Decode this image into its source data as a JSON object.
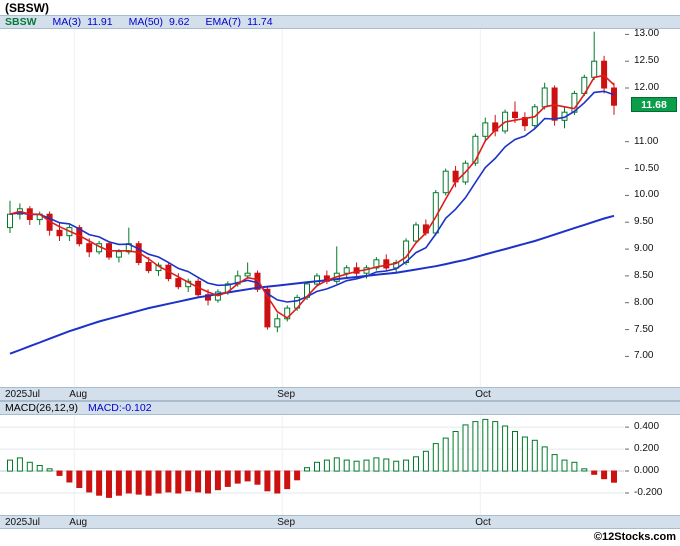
{
  "title": "(SBSW)",
  "legend": {
    "symbol": "SBSW",
    "items": [
      {
        "label": "MA(3)",
        "value": "11.91"
      },
      {
        "label": "MA(50)",
        "value": "9.62"
      },
      {
        "label": "EMA(7)",
        "value": "11.74"
      }
    ]
  },
  "price_badge": "11.68",
  "macd_legend": {
    "label": "MACD(26,12,9)",
    "value_label": "MACD:-0.102"
  },
  "watermark": "©12Stocks.com",
  "colors": {
    "up": "#007a29",
    "down": "#cc1111",
    "ma3": "#e01b1b",
    "ema7": "#1c32c8",
    "ma50": "#1c32c8",
    "badge_bg": "#0a9e4a",
    "strip_bg": "#d3dfeb",
    "strip_border": "#a8bccd",
    "legend_blue": "#0000cc",
    "symbol_green": "#067a3a"
  },
  "chart_data": {
    "type": "candlestick",
    "symbol": "SBSW",
    "title": "(SBSW)",
    "x_axis": {
      "labels": [
        "2025Jul",
        "Aug",
        "Sep",
        "Oct"
      ],
      "month_start_idx": [
        0,
        7,
        28,
        48
      ]
    },
    "price_axis_ticks": [
      {
        "label": "13.00",
        "value": 13.0
      },
      {
        "label": "12.50",
        "value": 12.5
      },
      {
        "label": "12.00",
        "value": 12.0
      },
      {
        "label": "11.00",
        "value": 11.0
      },
      {
        "label": "10.50",
        "value": 10.5
      },
      {
        "label": "10.00",
        "value": 10.0
      },
      {
        "label": "9.50",
        "value": 9.5
      },
      {
        "label": "9.00",
        "value": 9.0
      },
      {
        "label": "8.50",
        "value": 8.5
      },
      {
        "label": "8.00",
        "value": 8.0
      },
      {
        "label": "7.50",
        "value": 7.5
      },
      {
        "label": "7.00",
        "value": 7.0
      }
    ],
    "price_range": [
      6.43,
      13.1
    ],
    "last_price": 11.68,
    "indicators": {
      "ma3_last": 11.91,
      "ma50_last": 9.62,
      "ema7_last": 11.74
    },
    "candles": [
      [
        9.4,
        9.9,
        9.3,
        9.65
      ],
      [
        9.65,
        9.85,
        9.55,
        9.75
      ],
      [
        9.75,
        9.8,
        9.45,
        9.55
      ],
      [
        9.55,
        9.7,
        9.45,
        9.65
      ],
      [
        9.65,
        9.7,
        9.25,
        9.35
      ],
      [
        9.35,
        9.5,
        9.15,
        9.25
      ],
      [
        9.25,
        9.45,
        9.15,
        9.4
      ],
      [
        9.4,
        9.45,
        9.05,
        9.1
      ],
      [
        9.1,
        9.2,
        8.85,
        8.95
      ],
      [
        8.95,
        9.15,
        8.9,
        9.1
      ],
      [
        9.1,
        9.15,
        8.8,
        8.85
      ],
      [
        8.85,
        9.0,
        8.75,
        8.95
      ],
      [
        8.95,
        9.4,
        8.9,
        9.1
      ],
      [
        9.1,
        9.15,
        8.7,
        8.75
      ],
      [
        8.75,
        8.85,
        8.55,
        8.6
      ],
      [
        8.6,
        8.75,
        8.5,
        8.7
      ],
      [
        8.7,
        8.75,
        8.4,
        8.45
      ],
      [
        8.45,
        8.55,
        8.25,
        8.3
      ],
      [
        8.3,
        8.45,
        8.2,
        8.4
      ],
      [
        8.4,
        8.45,
        8.1,
        8.15
      ],
      [
        8.15,
        8.25,
        7.95,
        8.05
      ],
      [
        8.05,
        8.25,
        8.0,
        8.2
      ],
      [
        8.2,
        8.4,
        8.15,
        8.35
      ],
      [
        8.35,
        8.6,
        8.3,
        8.5
      ],
      [
        8.5,
        8.75,
        8.45,
        8.55
      ],
      [
        8.55,
        8.6,
        8.2,
        8.25
      ],
      [
        8.25,
        8.3,
        7.5,
        7.55
      ],
      [
        7.55,
        7.8,
        7.45,
        7.7
      ],
      [
        7.7,
        7.95,
        7.65,
        7.9
      ],
      [
        7.9,
        8.15,
        7.85,
        8.1
      ],
      [
        8.1,
        8.4,
        8.05,
        8.35
      ],
      [
        8.35,
        8.55,
        8.3,
        8.5
      ],
      [
        8.5,
        8.6,
        8.35,
        8.4
      ],
      [
        8.4,
        9.05,
        8.35,
        8.55
      ],
      [
        8.55,
        8.7,
        8.45,
        8.65
      ],
      [
        8.65,
        8.75,
        8.5,
        8.55
      ],
      [
        8.55,
        8.7,
        8.45,
        8.65
      ],
      [
        8.65,
        8.85,
        8.6,
        8.8
      ],
      [
        8.8,
        8.9,
        8.6,
        8.65
      ],
      [
        8.65,
        8.8,
        8.55,
        8.75
      ],
      [
        8.75,
        9.2,
        8.7,
        9.15
      ],
      [
        9.15,
        9.5,
        9.1,
        9.45
      ],
      [
        9.45,
        9.55,
        9.25,
        9.3
      ],
      [
        9.3,
        10.1,
        9.25,
        10.05
      ],
      [
        10.05,
        10.5,
        10.0,
        10.45
      ],
      [
        10.45,
        10.55,
        10.15,
        10.25
      ],
      [
        10.25,
        10.65,
        10.2,
        10.6
      ],
      [
        10.6,
        11.15,
        10.55,
        11.1
      ],
      [
        11.1,
        11.45,
        11.0,
        11.35
      ],
      [
        11.35,
        11.5,
        11.1,
        11.2
      ],
      [
        11.2,
        11.6,
        11.15,
        11.55
      ],
      [
        11.55,
        11.75,
        11.35,
        11.45
      ],
      [
        11.45,
        11.55,
        11.2,
        11.3
      ],
      [
        11.3,
        11.7,
        11.25,
        11.65
      ],
      [
        11.65,
        12.1,
        11.6,
        12.0
      ],
      [
        12.0,
        12.05,
        11.3,
        11.4
      ],
      [
        11.4,
        11.65,
        11.25,
        11.55
      ],
      [
        11.55,
        11.95,
        11.5,
        11.9
      ],
      [
        11.9,
        12.25,
        11.85,
        12.2
      ],
      [
        12.2,
        13.05,
        12.15,
        12.5
      ],
      [
        12.5,
        12.6,
        11.9,
        12.0
      ],
      [
        12.0,
        12.1,
        11.5,
        11.68
      ]
    ],
    "ma50": [
      7.05,
      7.12,
      7.19,
      7.26,
      7.33,
      7.4,
      7.47,
      7.53,
      7.59,
      7.65,
      7.7,
      7.75,
      7.8,
      7.85,
      7.9,
      7.94,
      7.98,
      8.02,
      8.06,
      8.1,
      8.13,
      8.16,
      8.19,
      8.22,
      8.25,
      8.28,
      8.3,
      8.32,
      8.34,
      8.36,
      8.38,
      8.4,
      8.42,
      8.44,
      8.46,
      8.48,
      8.5,
      8.52,
      8.54,
      8.56,
      8.59,
      8.62,
      8.65,
      8.68,
      8.72,
      8.76,
      8.8,
      8.85,
      8.9,
      8.95,
      9.0,
      9.05,
      9.1,
      9.15,
      9.21,
      9.27,
      9.33,
      9.39,
      9.45,
      9.51,
      9.57,
      9.62
    ],
    "macd": {
      "params": "26,12,9",
      "last": -0.102,
      "range": [
        -0.4,
        0.51
      ],
      "axis_ticks": [
        {
          "label": "0.400",
          "value": 0.4
        },
        {
          "label": "0.200",
          "value": 0.2
        },
        {
          "label": "0.000",
          "value": 0.0
        },
        {
          "label": "-0.200",
          "value": -0.2
        }
      ],
      "hist": [
        0.1,
        0.12,
        0.08,
        0.05,
        0.02,
        -0.04,
        -0.1,
        -0.15,
        -0.19,
        -0.22,
        -0.24,
        -0.22,
        -0.2,
        -0.21,
        -0.22,
        -0.2,
        -0.19,
        -0.2,
        -0.18,
        -0.19,
        -0.2,
        -0.17,
        -0.14,
        -0.11,
        -0.09,
        -0.12,
        -0.18,
        -0.2,
        -0.16,
        -0.08,
        0.03,
        0.08,
        0.1,
        0.12,
        0.1,
        0.09,
        0.1,
        0.12,
        0.11,
        0.09,
        0.1,
        0.13,
        0.18,
        0.25,
        0.3,
        0.36,
        0.42,
        0.45,
        0.47,
        0.45,
        0.41,
        0.36,
        0.31,
        0.28,
        0.22,
        0.15,
        0.1,
        0.08,
        0.02,
        -0.03,
        -0.07,
        -0.102
      ]
    }
  }
}
